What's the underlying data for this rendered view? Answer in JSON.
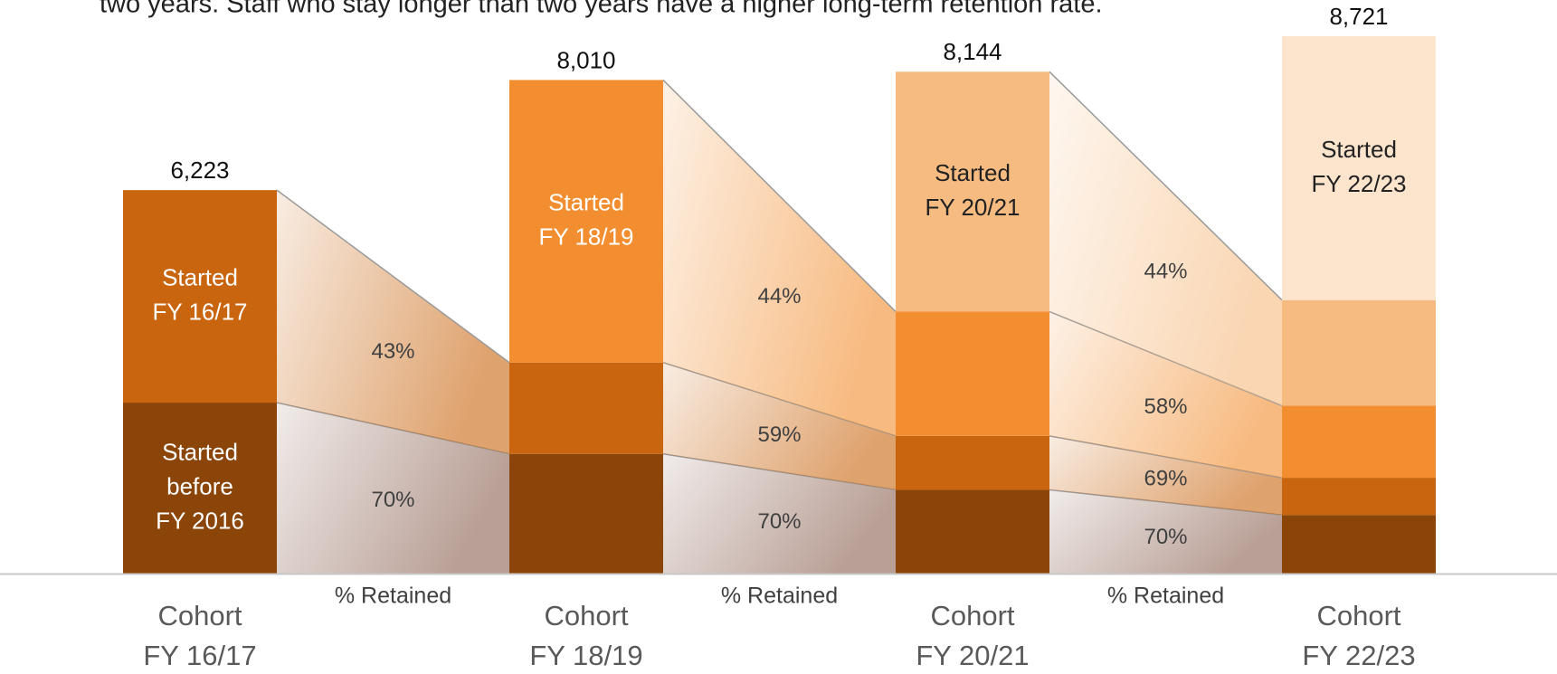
{
  "chart_data": {
    "type": "stacked_flow",
    "subtitle": "two years. Staff who stay longer than two years have a higher long-term retention rate.",
    "categories": [
      "Cohort FY 16/17",
      "Cohort FY 18/19",
      "Cohort FY 20/21",
      "Cohort FY 22/23"
    ],
    "series": [
      {
        "name": "Started before FY 2016",
        "color": "#8b4509",
        "values": [
          2774,
          1942,
          1359,
          951
        ],
        "retained": [
          70,
          70,
          70
        ],
        "retained_labels": [
          "70%",
          "70%",
          "70%"
        ]
      },
      {
        "name": "Started FY 16/17",
        "color": "#c9650e",
        "values": [
          3449,
          1483,
          875,
          604
        ],
        "retained": [
          43,
          59,
          69
        ],
        "retained_labels": [
          "43%",
          "59%",
          "69%"
        ]
      },
      {
        "name": "Started FY 18/19",
        "color": "#f28e2f",
        "values": [
          null,
          4585,
          2017,
          1170
        ],
        "retained": [
          44,
          58
        ],
        "retained_labels": [
          "44%",
          "58%"
        ]
      },
      {
        "name": "Started FY 20/21",
        "color": "#f6bb80",
        "values": [
          null,
          null,
          3893,
          1713
        ],
        "retained": [
          44
        ],
        "retained_labels": [
          "44%"
        ]
      },
      {
        "name": "Started FY 22/23",
        "color": "#fde4cd",
        "values": [
          null,
          null,
          null,
          4283
        ],
        "retained": [],
        "retained_labels": []
      }
    ],
    "totals": [
      6223,
      8010,
      8144,
      8721
    ],
    "total_labels": [
      "6,223",
      "8,010",
      "8,144",
      "8,721"
    ],
    "gap_label": "% Retained"
  }
}
